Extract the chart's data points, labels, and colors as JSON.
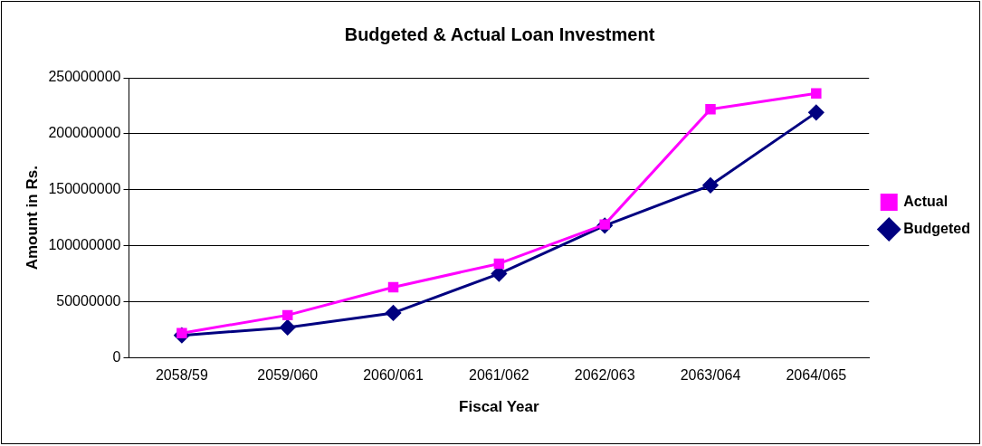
{
  "chart_data": {
    "type": "line",
    "title": "Budgeted & Actual Loan Investment",
    "xlabel": "Fiscal Year",
    "ylabel": "Amount in Rs.",
    "categories": [
      "2058/59",
      "2059/060",
      "2060/061",
      "2061/062",
      "2062/063",
      "2063/064",
      "2064/065"
    ],
    "series": [
      {
        "name": "Budgeted",
        "color": "#000080",
        "marker": "diamond",
        "values": [
          20000000,
          27000000,
          40000000,
          75000000,
          118000000,
          154000000,
          219000000
        ]
      },
      {
        "name": "Actual",
        "color": "#ff00ff",
        "marker": "square",
        "values": [
          22000000,
          38000000,
          63000000,
          84000000,
          119000000,
          222000000,
          236000000
        ]
      }
    ],
    "ylim": [
      0,
      250000000
    ],
    "yticks": [
      0,
      50000000,
      100000000,
      150000000,
      200000000,
      250000000
    ],
    "grid": "y",
    "legend": "right",
    "line_style": "solid"
  }
}
